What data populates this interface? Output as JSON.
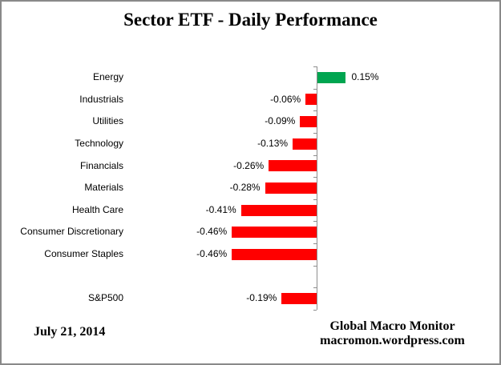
{
  "chart_data": {
    "type": "bar",
    "orientation": "horizontal",
    "title": "Sector ETF - Daily Performance",
    "unit": "%",
    "gridlines": false,
    "legend": null,
    "xlim": [
      -0.6,
      0.25
    ],
    "rows": [
      {
        "category": "Energy",
        "value": 0.15,
        "label": "0.15%"
      },
      {
        "category": "Industrials",
        "value": -0.06,
        "label": "-0.06%"
      },
      {
        "category": "Utilities",
        "value": -0.09,
        "label": "-0.09%"
      },
      {
        "category": "Technology",
        "value": -0.13,
        "label": "-0.13%"
      },
      {
        "category": "Financials",
        "value": -0.26,
        "label": "-0.26%"
      },
      {
        "category": "Materials",
        "value": -0.28,
        "label": "-0.28%"
      },
      {
        "category": "Health Care",
        "value": -0.41,
        "label": "-0.41%"
      },
      {
        "category": "Consumer Discretionary",
        "value": -0.46,
        "label": "-0.46%"
      },
      {
        "category": "Consumer Staples",
        "value": -0.46,
        "label": "-0.46%"
      },
      {
        "category": "",
        "value": null,
        "label": ""
      },
      {
        "category": "S&P500",
        "value": -0.19,
        "label": "-0.19%"
      }
    ],
    "colors": {
      "positive": "#00A550",
      "negative": "#FF0000",
      "axis": "#8E8E8E"
    }
  },
  "footer": {
    "date": "July 21, 2014",
    "brand": "Global Macro Monitor",
    "site": "macromon.wordpress.com"
  }
}
